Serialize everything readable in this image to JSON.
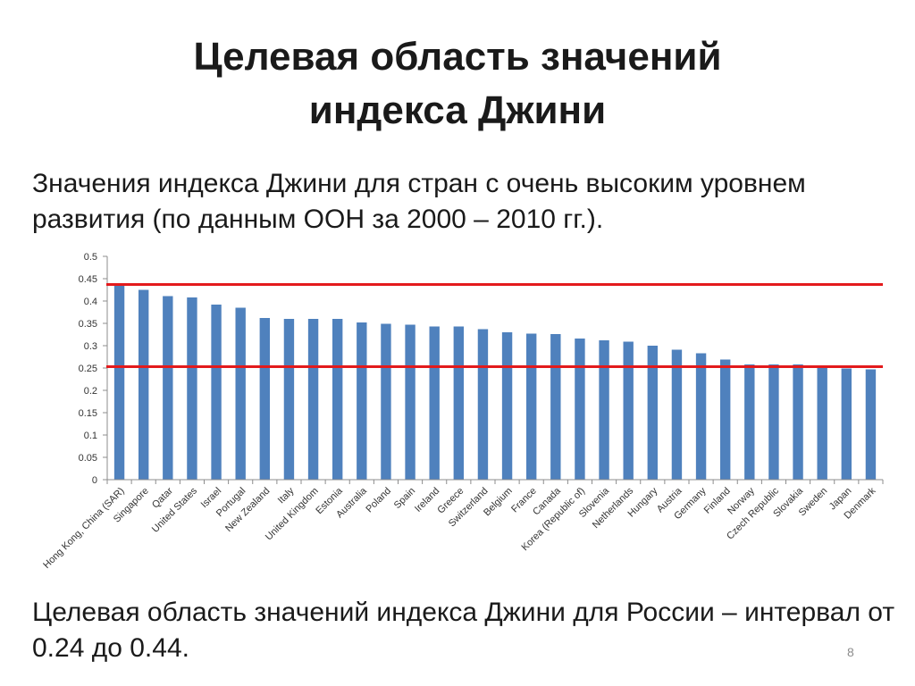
{
  "slide": {
    "title_line1": "Целевая область значений",
    "title_line2": "индекса Джини",
    "subtitle": "Значения индекса Джини для стран с очень высоким уровнем развития (по данным ООН за 2000 – 2010 гг.).",
    "footer": "Целевая область значений индекса Джини для России – интервал от 0.24 до 0.44.",
    "page_number": "8"
  },
  "chart_data": {
    "type": "bar",
    "categories": [
      "Hong Kong, China (SAR)",
      "Singapore",
      "Qatar",
      "United States",
      "Israel",
      "Portugal",
      "New Zealand",
      "Italy",
      "United Kingdom",
      "Estonia",
      "Australia",
      "Poland",
      "Spain",
      "Ireland",
      "Greece",
      "Switzerland",
      "Belgium",
      "France",
      "Canada",
      "Korea (Republic of)",
      "Slovenia",
      "Netherlands",
      "Hungary",
      "Austria",
      "Germany",
      "Finland",
      "Norway",
      "Czech Republic",
      "Slovakia",
      "Sweden",
      "Japan",
      "Denmark"
    ],
    "values": [
      0.434,
      0.425,
      0.411,
      0.408,
      0.392,
      0.385,
      0.362,
      0.36,
      0.36,
      0.36,
      0.352,
      0.349,
      0.347,
      0.343,
      0.343,
      0.337,
      0.33,
      0.327,
      0.326,
      0.316,
      0.312,
      0.309,
      0.3,
      0.291,
      0.283,
      0.269,
      0.258,
      0.258,
      0.258,
      0.25,
      0.249,
      0.247
    ],
    "yticks": [
      "0",
      "0.05",
      "0.1",
      "0.15",
      "0.2",
      "0.25",
      "0.3",
      "0.35",
      "0.4",
      "0.45",
      "0.5"
    ],
    "ylim": [
      0,
      0.5
    ],
    "reference_lines": [
      0.437,
      0.253
    ],
    "bar_color": "#4f81bd",
    "reference_line_color": "#e31a1c",
    "grid": false
  }
}
